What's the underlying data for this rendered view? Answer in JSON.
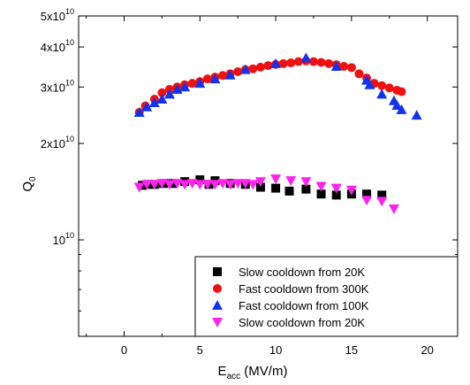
{
  "chart_data": {
    "type": "scatter",
    "xlabel": "E",
    "xlabel_sub": "acc",
    "xlabel_unit": " (MV/m)",
    "ylabel": "Q",
    "ylabel_sub": "0",
    "xlim": [
      -3,
      22
    ],
    "ylim": [
      5000000000,
      50000000000
    ],
    "yscale": "log",
    "x_ticks": [
      0,
      5,
      10,
      15,
      20
    ],
    "x_tick_labels": [
      "0",
      "5",
      "10",
      "15",
      "20"
    ],
    "y_ticks": [
      {
        "value": 50000000000,
        "base": "5x10",
        "exp": "10"
      },
      {
        "value": 40000000000,
        "base": "4x10",
        "exp": "10"
      },
      {
        "value": 30000000000,
        "base": "3x10",
        "exp": "10"
      },
      {
        "value": 20000000000,
        "base": "2x10",
        "exp": "10"
      },
      {
        "value": 10000000000,
        "base": "10",
        "exp": "10"
      }
    ],
    "legend_position": "bottom-right",
    "series": [
      {
        "name": "Slow cooldown from 20K",
        "marker": "square",
        "color": "#000000",
        "points": [
          [
            1.2,
            14800000000.0
          ],
          [
            1.6,
            14900000000.0
          ],
          [
            2,
            14900000000.0
          ],
          [
            2.6,
            15000000000.0
          ],
          [
            3.2,
            15000000000.0
          ],
          [
            4,
            15200000000.0
          ],
          [
            5,
            15400000000.0
          ],
          [
            5.6,
            14900000000.0
          ],
          [
            6,
            15300000000.0
          ],
          [
            7,
            15000000000.0
          ],
          [
            8,
            14900000000.0
          ],
          [
            9,
            14600000000.0
          ],
          [
            10,
            14500000000.0
          ],
          [
            10.9,
            14200000000.0
          ],
          [
            12,
            14400000000.0
          ],
          [
            13,
            13900000000.0
          ],
          [
            14,
            13800000000.0
          ],
          [
            15,
            13900000000.0
          ],
          [
            16,
            13900000000.0
          ],
          [
            17,
            13800000000.0
          ]
        ]
      },
      {
        "name": "Fast cooldown from 300K",
        "marker": "circle",
        "color": "#ee1111",
        "points": [
          [
            1,
            25000000000.0
          ],
          [
            1.4,
            26200000000.0
          ],
          [
            2,
            27500000000.0
          ],
          [
            2.5,
            28800000000.0
          ],
          [
            3,
            29500000000.0
          ],
          [
            3.5,
            30000000000.0
          ],
          [
            4,
            30500000000.0
          ],
          [
            4.5,
            30800000000.0
          ],
          [
            5,
            31200000000.0
          ],
          [
            5.5,
            31800000000.0
          ],
          [
            6,
            32200000000.0
          ],
          [
            6.5,
            32600000000.0
          ],
          [
            7,
            33000000000.0
          ],
          [
            7.5,
            33500000000.0
          ],
          [
            8,
            34000000000.0
          ],
          [
            8.5,
            34200000000.0
          ],
          [
            9,
            34600000000.0
          ],
          [
            9.5,
            35000000000.0
          ],
          [
            10,
            35300000000.0
          ],
          [
            10.5,
            35500000000.0
          ],
          [
            11,
            35700000000.0
          ],
          [
            11.5,
            36000000000.0
          ],
          [
            12,
            36200000000.0
          ],
          [
            12.5,
            36000000000.0
          ],
          [
            13,
            35800000000.0
          ],
          [
            13.5,
            35500000000.0
          ],
          [
            14,
            35200000000.0
          ],
          [
            14.5,
            34800000000.0
          ],
          [
            15,
            34500000000.0
          ],
          [
            15.5,
            33000000000.0
          ],
          [
            16,
            32000000000.0
          ],
          [
            16.5,
            30800000000.0
          ],
          [
            17,
            30300000000.0
          ],
          [
            17.5,
            29800000000.0
          ],
          [
            18,
            29300000000.0
          ],
          [
            18.3,
            29000000000.0
          ]
        ]
      },
      {
        "name": "Fast cooldown from 100K",
        "marker": "triangle-up",
        "color": "#1133ee",
        "points": [
          [
            1,
            25000000000.0
          ],
          [
            1.5,
            26000000000.0
          ],
          [
            2,
            26800000000.0
          ],
          [
            2.5,
            27500000000.0
          ],
          [
            3,
            28500000000.0
          ],
          [
            3.5,
            29500000000.0
          ],
          [
            4,
            30000000000.0
          ],
          [
            5,
            30800000000.0
          ],
          [
            6,
            31800000000.0
          ],
          [
            7,
            32700000000.0
          ],
          [
            8,
            34000000000.0
          ],
          [
            10,
            35500000000.0
          ],
          [
            12,
            37000000000.0
          ],
          [
            14,
            34800000000.0
          ],
          [
            16,
            31500000000.0
          ],
          [
            16.2,
            30500000000.0
          ],
          [
            17,
            28500000000.0
          ],
          [
            17.8,
            27200000000.0
          ],
          [
            18,
            26300000000.0
          ],
          [
            18.3,
            25500000000.0
          ],
          [
            19.3,
            24500000000.0
          ]
        ]
      },
      {
        "name": "Slow cooldown from 20K",
        "marker": "triangle-down",
        "color": "#ff22ee",
        "points": [
          [
            1,
            14600000000.0
          ],
          [
            1.5,
            14900000000.0
          ],
          [
            2,
            14900000000.0
          ],
          [
            2.5,
            15000000000.0
          ],
          [
            3,
            14900000000.0
          ],
          [
            3.5,
            15000000000.0
          ],
          [
            4,
            14900000000.0
          ],
          [
            4.5,
            15000000000.0
          ],
          [
            5,
            14900000000.0
          ],
          [
            5.5,
            14900000000.0
          ],
          [
            6,
            14900000000.0
          ],
          [
            6.5,
            15000000000.0
          ],
          [
            7,
            14900000000.0
          ],
          [
            7.5,
            15000000000.0
          ],
          [
            8,
            15000000000.0
          ],
          [
            8.5,
            14900000000.0
          ],
          [
            9,
            15200000000.0
          ],
          [
            10,
            15500000000.0
          ],
          [
            11,
            15300000000.0
          ],
          [
            12,
            15200000000.0
          ],
          [
            13,
            14700000000.0
          ],
          [
            14,
            14500000000.0
          ],
          [
            15,
            14300000000.0
          ],
          [
            16,
            13300000000.0
          ],
          [
            17,
            13200000000.0
          ],
          [
            17.8,
            12500000000.0
          ]
        ]
      }
    ]
  }
}
